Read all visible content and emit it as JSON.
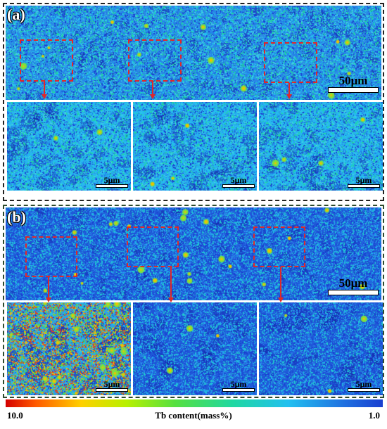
{
  "panels": [
    {
      "label": "(a)",
      "scale_main": "50μm",
      "scale_inset": "5μm",
      "colors": {
        "background": "#1e5fd6",
        "frame": "#222222"
      }
    },
    {
      "label": "(b)",
      "scale_main": "50μm",
      "scale_inset": "5μm",
      "colors": {
        "background": "#1e4fd0",
        "frame": "#2d4a2d"
      }
    }
  ],
  "colorbar": {
    "min_label": "10.0",
    "title": "Tb content(mass%)",
    "max_label": "1.0",
    "colors": [
      "#d40000",
      "#ff5a00",
      "#ffd000",
      "#55e040",
      "#22c0f0",
      "#1a3fd0"
    ]
  },
  "annotation_color": "#e0282a"
}
